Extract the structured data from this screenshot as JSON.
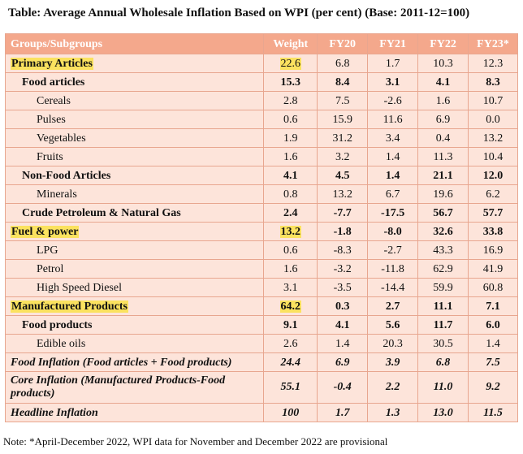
{
  "title": "Table: Average Annual Wholesale Inflation Based on WPI (per cent) (Base: 2011-12=100)",
  "headers": [
    "Groups/Subgroups",
    "Weight",
    "FY20",
    "FY21",
    "FY22",
    "FY23*"
  ],
  "rows": [
    {
      "label": "Primary Articles",
      "weight": "22.6",
      "fy20": "6.8",
      "fy21": "1.7",
      "fy22": "10.3",
      "fy23": "12.3"
    },
    {
      "label": "Food articles",
      "weight": "15.3",
      "fy20": "8.4",
      "fy21": "3.1",
      "fy22": "4.1",
      "fy23": "8.3"
    },
    {
      "label": "Cereals",
      "weight": "2.8",
      "fy20": "7.5",
      "fy21": "-2.6",
      "fy22": "1.6",
      "fy23": "10.7"
    },
    {
      "label": "Pulses",
      "weight": "0.6",
      "fy20": "15.9",
      "fy21": "11.6",
      "fy22": "6.9",
      "fy23": "0.0"
    },
    {
      "label": "Vegetables",
      "weight": "1.9",
      "fy20": "31.2",
      "fy21": "3.4",
      "fy22": "0.4",
      "fy23": "13.2"
    },
    {
      "label": "Fruits",
      "weight": "1.6",
      "fy20": "3.2",
      "fy21": "1.4",
      "fy22": "11.3",
      "fy23": "10.4"
    },
    {
      "label": "Non-Food Articles",
      "weight": "4.1",
      "fy20": "4.5",
      "fy21": "1.4",
      "fy22": "21.1",
      "fy23": "12.0"
    },
    {
      "label": "Minerals",
      "weight": "0.8",
      "fy20": "13.2",
      "fy21": "6.7",
      "fy22": "19.6",
      "fy23": "6.2"
    },
    {
      "label": "Crude Petroleum & Natural Gas",
      "weight": "2.4",
      "fy20": "-7.7",
      "fy21": "-17.5",
      "fy22": "56.7",
      "fy23": "57.7"
    },
    {
      "label": "Fuel & power",
      "weight": "13.2",
      "fy20": "-1.8",
      "fy21": "-8.0",
      "fy22": "32.6",
      "fy23": "33.8"
    },
    {
      "label": "LPG",
      "weight": "0.6",
      "fy20": "-8.3",
      "fy21": "-2.7",
      "fy22": "43.3",
      "fy23": "16.9"
    },
    {
      "label": "Petrol",
      "weight": "1.6",
      "fy20": "-3.2",
      "fy21": "-11.8",
      "fy22": "62.9",
      "fy23": "41.9"
    },
    {
      "label": "High Speed Diesel",
      "weight": "3.1",
      "fy20": "-3.5",
      "fy21": "-14.4",
      "fy22": "59.9",
      "fy23": "60.8"
    },
    {
      "label": "Manufactured Products",
      "weight": "64.2",
      "fy20": "0.3",
      "fy21": "2.7",
      "fy22": "11.1",
      "fy23": "7.1"
    },
    {
      "label": "Food products",
      "weight": "9.1",
      "fy20": "4.1",
      "fy21": "5.6",
      "fy22": "11.7",
      "fy23": "6.0"
    },
    {
      "label": "Edible oils",
      "weight": "2.6",
      "fy20": "1.4",
      "fy21": "20.3",
      "fy22": "30.5",
      "fy23": "1.4"
    },
    {
      "label": "Food Inflation (Food articles + Food products)",
      "weight": "24.4",
      "fy20": "6.9",
      "fy21": "3.9",
      "fy22": "6.8",
      "fy23": "7.5"
    },
    {
      "label": "Core Inflation (Manufactured Products-Food products)",
      "weight": "55.1",
      "fy20": "-0.4",
      "fy21": "2.2",
      "fy22": "11.0",
      "fy23": "9.2"
    },
    {
      "label": "Headline Inflation",
      "weight": "100",
      "fy20": "1.7",
      "fy21": "1.3",
      "fy22": "13.0",
      "fy23": "11.5"
    }
  ],
  "note": "Note: *April-December 2022, WPI data for November and December 2022 are provisional",
  "colors": {
    "header_bg": "#f4a88c",
    "body_bg": "#fde4da",
    "highlight": "#fbe25f",
    "border": "#e8a68f"
  }
}
